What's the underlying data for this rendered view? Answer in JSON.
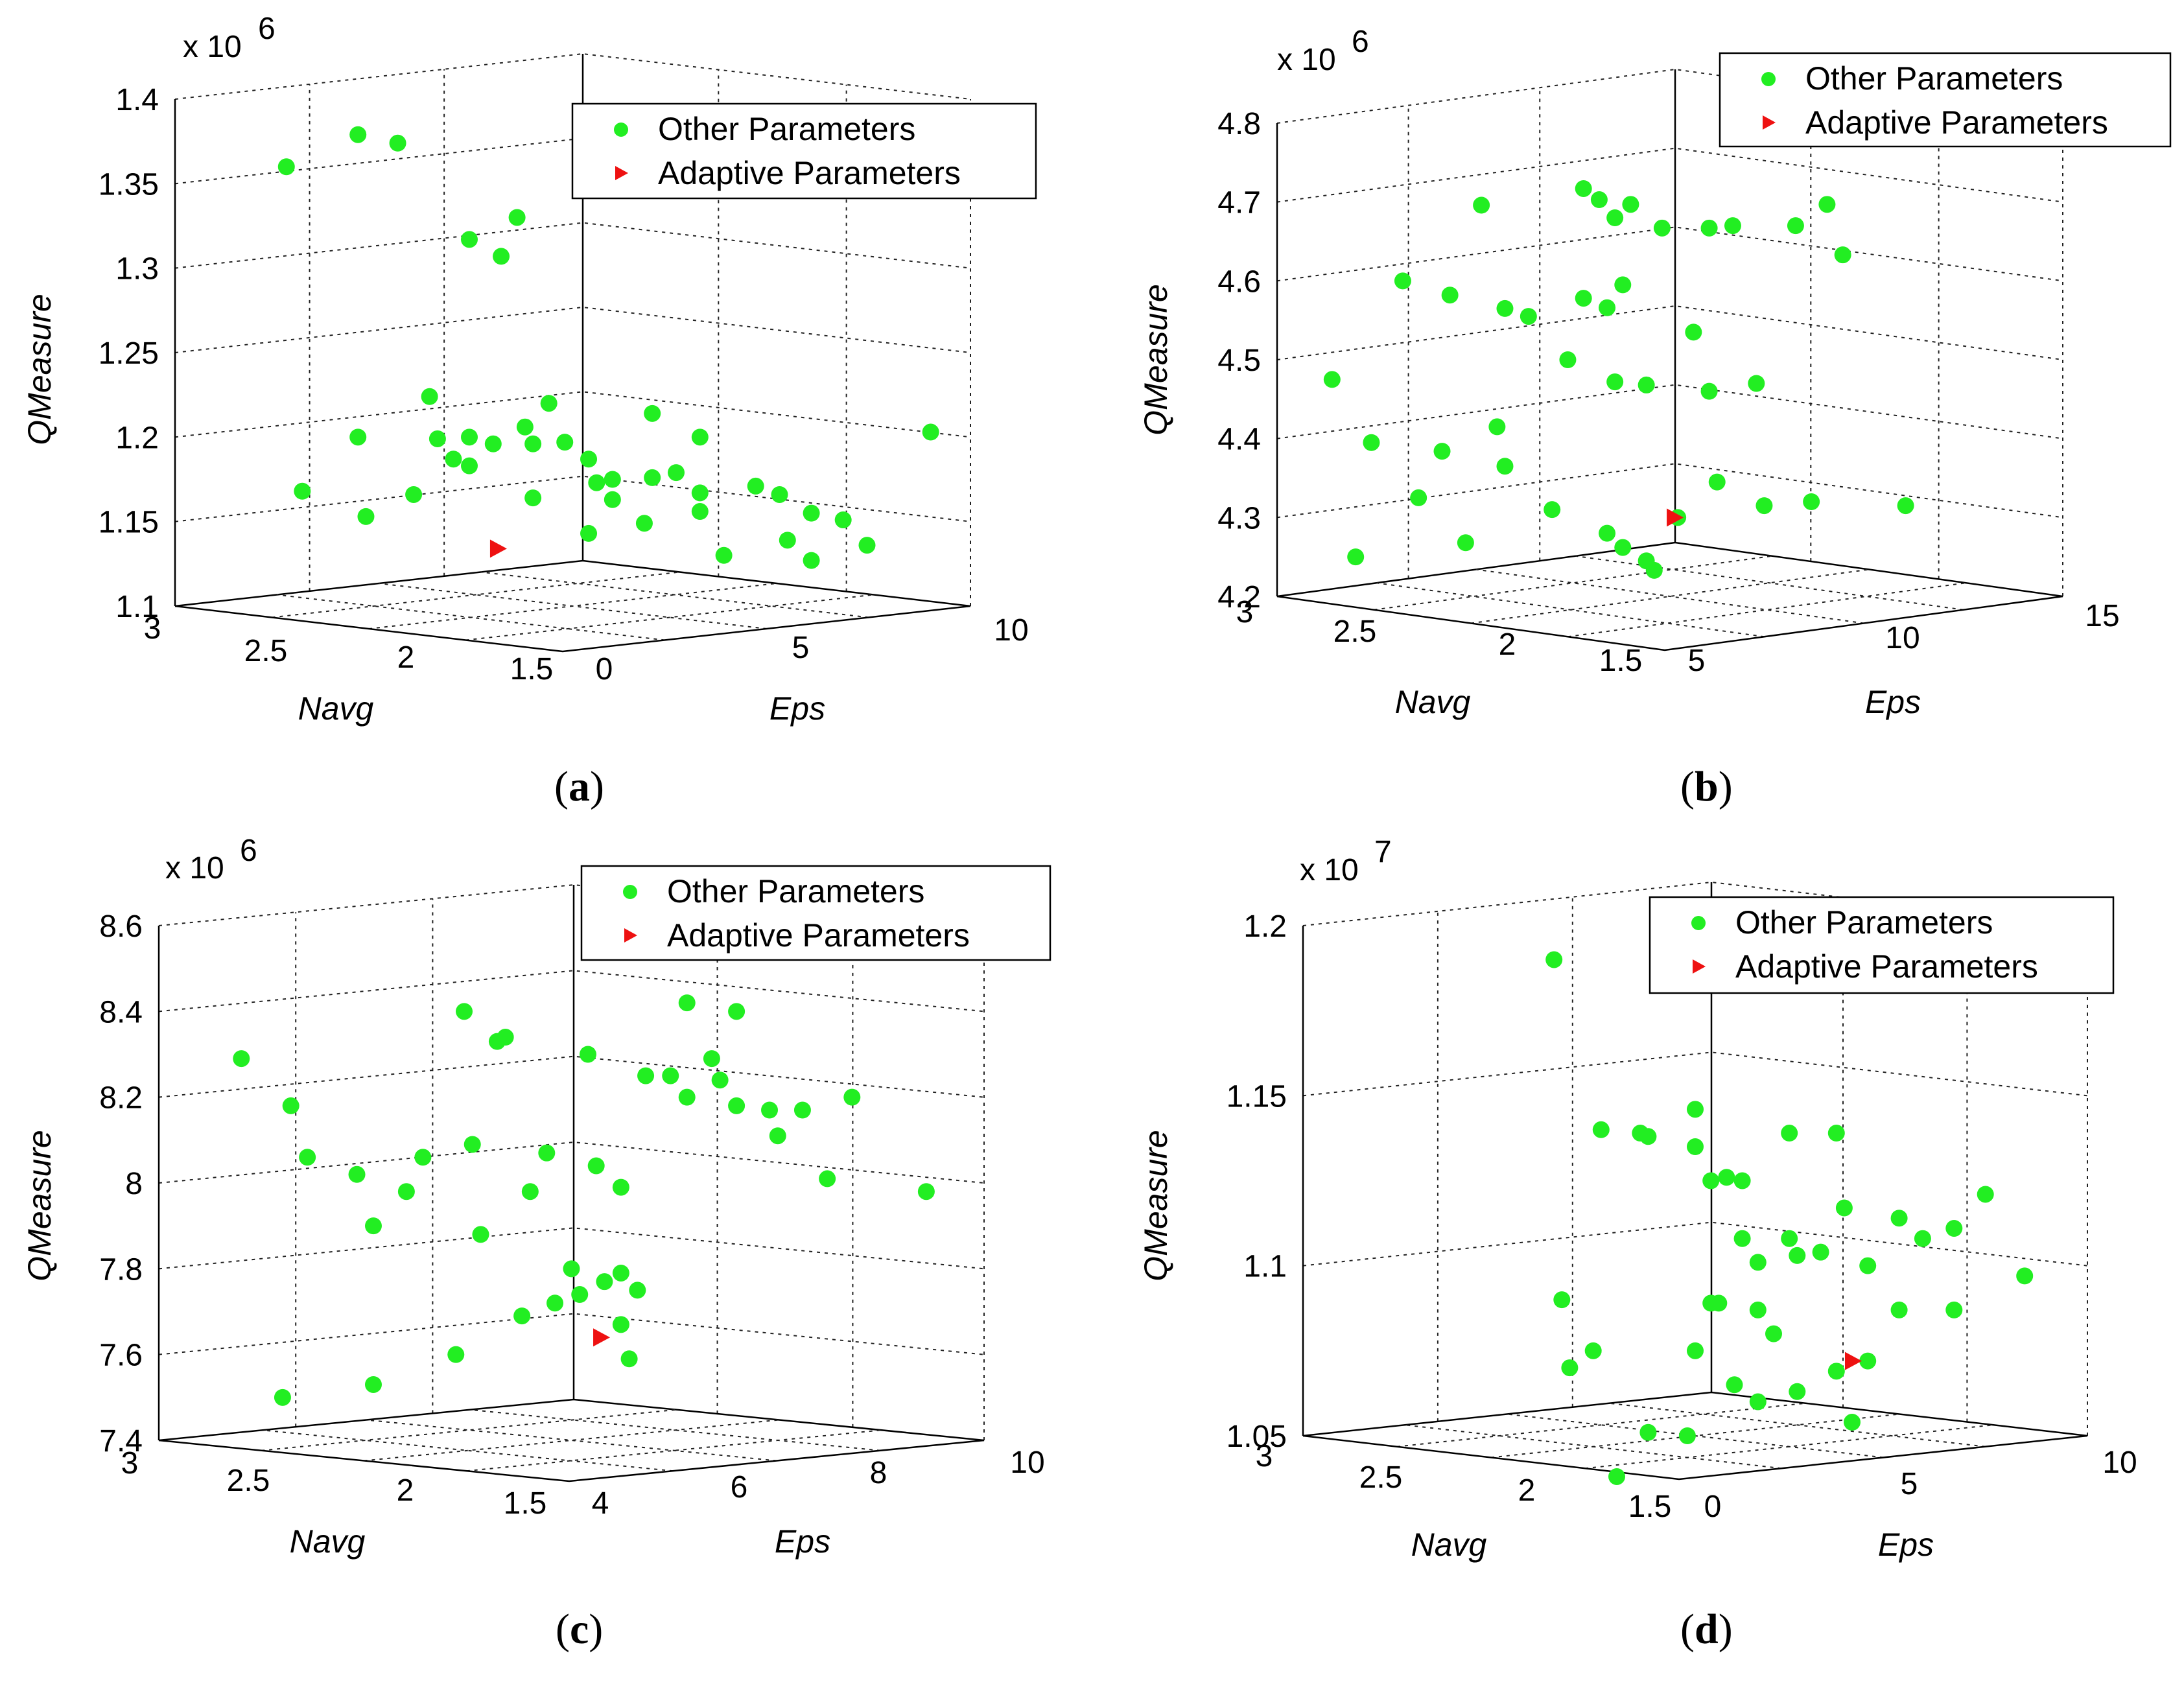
{
  "colors": {
    "other": "#22ee22",
    "adaptive": "#ee1111"
  },
  "chart_data": [
    {
      "type": "scatter3d",
      "panel_label": "a",
      "zlabel": "QMeasure",
      "xlabel": "Navg",
      "ylabel": "Eps",
      "z_exponent_base": "x 10",
      "z_exponent_power": "6",
      "z_ticks": [
        "1.1",
        "1.15",
        "1.2",
        "1.25",
        "1.3",
        "1.35",
        "1.4"
      ],
      "x_ticks": [
        "3",
        "2.5",
        "2",
        "1.5"
      ],
      "y_ticks": [
        "0",
        "5",
        "10"
      ],
      "zlim": [
        1.1,
        1.4
      ],
      "legend": [
        "Other Parameters",
        "Adaptive Parameters"
      ],
      "series": [
        {
          "name": "Other Parameters",
          "marker": "circle",
          "points_uv": [
            [
              0.14,
              1.36
            ],
            [
              0.23,
              1.379
            ],
            [
              0.28,
              1.374
            ],
            [
              0.37,
              1.317
            ],
            [
              0.41,
              1.307
            ],
            [
              0.43,
              1.33
            ],
            [
              0.37,
              1.183
            ],
            [
              0.32,
              1.224
            ],
            [
              0.23,
              1.2
            ],
            [
              0.16,
              1.168
            ],
            [
              0.24,
              1.153
            ],
            [
              0.3,
              1.166
            ],
            [
              0.33,
              1.199
            ],
            [
              0.35,
              1.187
            ],
            [
              0.37,
              1.2
            ],
            [
              0.4,
              1.196
            ],
            [
              0.44,
              1.206
            ],
            [
              0.45,
              1.196
            ],
            [
              0.47,
              1.22
            ],
            [
              0.49,
              1.197
            ],
            [
              0.45,
              1.164
            ],
            [
              0.52,
              1.187
            ],
            [
              0.53,
              1.173
            ],
            [
              0.55,
              1.175
            ],
            [
              0.52,
              1.143
            ],
            [
              0.6,
              1.214
            ],
            [
              0.6,
              1.176
            ],
            [
              0.63,
              1.179
            ],
            [
              0.66,
              1.2
            ],
            [
              0.55,
              1.163
            ],
            [
              0.59,
              1.149
            ],
            [
              0.66,
              1.167
            ],
            [
              0.66,
              1.156
            ],
            [
              0.73,
              1.171
            ],
            [
              0.76,
              1.166
            ],
            [
              0.69,
              1.13
            ],
            [
              0.77,
              1.139
            ],
            [
              0.8,
              1.155
            ],
            [
              0.84,
              1.151
            ],
            [
              0.87,
              1.136
            ],
            [
              0.95,
              1.203
            ],
            [
              0.8,
              1.127
            ]
          ]
        },
        {
          "name": "Adaptive Parameters",
          "marker": "triangle-right",
          "points_uv": [
            [
              0.405,
              1.134
            ]
          ]
        }
      ]
    },
    {
      "type": "scatter3d",
      "panel_label": "b",
      "zlabel": "QMeasure",
      "xlabel": "Navg",
      "ylabel": "Eps",
      "z_exponent_base": "x 10",
      "z_exponent_power": "6",
      "z_ticks": [
        "4.2",
        "4.3",
        "4.4",
        "4.5",
        "4.6",
        "4.7",
        "4.8"
      ],
      "x_ticks": [
        "3",
        "2.5",
        "2",
        "1.5"
      ],
      "y_ticks": [
        "5",
        "10",
        "15"
      ],
      "zlim": [
        4.2,
        4.8
      ],
      "legend": [
        "Other Parameters",
        "Adaptive Parameters"
      ],
      "series": [
        {
          "name": "Other Parameters",
          "marker": "circle",
          "points_uv": [
            [
              0.26,
              4.696
            ],
            [
              0.16,
              4.6
            ],
            [
              0.22,
              4.582
            ],
            [
              0.29,
              4.565
            ],
            [
              0.32,
              4.555
            ],
            [
              0.39,
              4.717
            ],
            [
              0.41,
              4.703
            ],
            [
              0.45,
              4.697
            ],
            [
              0.43,
              4.68
            ],
            [
              0.49,
              4.667
            ],
            [
              0.55,
              4.667
            ],
            [
              0.58,
              4.67
            ],
            [
              0.66,
              4.67
            ],
            [
              0.7,
              4.697
            ],
            [
              0.72,
              4.633
            ],
            [
              0.39,
              4.578
            ],
            [
              0.42,
              4.566
            ],
            [
              0.44,
              4.595
            ],
            [
              0.37,
              4.5
            ],
            [
              0.43,
              4.472
            ],
            [
              0.53,
              4.535
            ],
            [
              0.47,
              4.468
            ],
            [
              0.55,
              4.46
            ],
            [
              0.61,
              4.47
            ],
            [
              0.07,
              4.475
            ],
            [
              0.12,
              4.395
            ],
            [
              0.21,
              4.384
            ],
            [
              0.28,
              4.415
            ],
            [
              0.29,
              4.365
            ],
            [
              0.18,
              4.325
            ],
            [
              0.24,
              4.268
            ],
            [
              0.1,
              4.25
            ],
            [
              0.35,
              4.31
            ],
            [
              0.42,
              4.28
            ],
            [
              0.44,
              4.262
            ],
            [
              0.47,
              4.245
            ],
            [
              0.51,
              4.3
            ],
            [
              0.56,
              4.345
            ],
            [
              0.62,
              4.315
            ],
            [
              0.68,
              4.32
            ],
            [
              0.8,
              4.315
            ],
            [
              0.48,
              4.233
            ]
          ]
        },
        {
          "name": "Adaptive Parameters",
          "marker": "triangle-right",
          "points_uv": [
            [
              0.505,
              4.3
            ]
          ]
        }
      ]
    },
    {
      "type": "scatter3d",
      "panel_label": "c",
      "zlabel": "QMeasure",
      "xlabel": "Navg",
      "ylabel": "Eps",
      "z_exponent_base": "x 10",
      "z_exponent_power": "6",
      "z_ticks": [
        "7.4",
        "7.6",
        "7.8",
        "8",
        "8.2",
        "8.4",
        "8.6"
      ],
      "x_ticks": [
        "3",
        "2.5",
        "2",
        "1.5"
      ],
      "y_ticks": [
        "4",
        "6",
        "8",
        "10"
      ],
      "zlim": [
        7.4,
        8.6
      ],
      "legend": [
        "Other Parameters",
        "Adaptive Parameters"
      ],
      "series": [
        {
          "name": "Other Parameters",
          "marker": "circle",
          "points_uv": [
            [
              0.1,
              8.29
            ],
            [
              0.16,
              8.18
            ],
            [
              0.18,
              8.06
            ],
            [
              0.24,
              8.02
            ],
            [
              0.32,
              8.06
            ],
            [
              0.26,
              7.9
            ],
            [
              0.3,
              7.98
            ],
            [
              0.37,
              8.4
            ],
            [
              0.41,
              8.33
            ],
            [
              0.42,
              8.34
            ],
            [
              0.38,
              8.09
            ],
            [
              0.39,
              7.88
            ],
            [
              0.45,
              7.98
            ],
            [
              0.47,
              8.07
            ],
            [
              0.52,
              8.3
            ],
            [
              0.53,
              8.04
            ],
            [
              0.56,
              7.99
            ],
            [
              0.59,
              8.25
            ],
            [
              0.62,
              8.25
            ],
            [
              0.64,
              8.42
            ],
            [
              0.64,
              8.2
            ],
            [
              0.67,
              8.29
            ],
            [
              0.68,
              8.24
            ],
            [
              0.7,
              8.4
            ],
            [
              0.7,
              8.18
            ],
            [
              0.74,
              8.17
            ],
            [
              0.75,
              8.11
            ],
            [
              0.78,
              8.17
            ],
            [
              0.81,
              8.01
            ],
            [
              0.84,
              8.2
            ],
            [
              0.93,
              7.98
            ],
            [
              0.44,
              7.69
            ],
            [
              0.48,
              7.72
            ],
            [
              0.5,
              7.8
            ],
            [
              0.51,
              7.74
            ],
            [
              0.54,
              7.77
            ],
            [
              0.56,
              7.79
            ],
            [
              0.58,
              7.75
            ],
            [
              0.56,
              7.67
            ],
            [
              0.57,
              7.59
            ],
            [
              0.36,
              7.6
            ],
            [
              0.26,
              7.53
            ],
            [
              0.15,
              7.5
            ]
          ]
        },
        {
          "name": "Adaptive Parameters",
          "marker": "triangle-right",
          "points_uv": [
            [
              0.535,
              7.64
            ]
          ]
        }
      ]
    },
    {
      "type": "scatter3d",
      "panel_label": "d",
      "zlabel": "QMeasure",
      "xlabel": "Navg",
      "ylabel": "Eps",
      "z_exponent_base": "x 10",
      "z_exponent_power": "7",
      "z_ticks": [
        "1.05",
        "1.1",
        "1.15",
        "1.2"
      ],
      "x_ticks": [
        "3",
        "2.5",
        "2",
        "1.5"
      ],
      "y_ticks": [
        "0",
        "5",
        "10"
      ],
      "zlim": [
        1.05,
        1.2
      ],
      "legend": [
        "Other Parameters",
        "Adaptive Parameters"
      ],
      "series": [
        {
          "name": "Other Parameters",
          "marker": "circle",
          "points_uv": [
            [
              0.32,
              1.19
            ],
            [
              0.38,
              1.14
            ],
            [
              0.43,
              1.139
            ],
            [
              0.44,
              1.138
            ],
            [
              0.5,
              1.146
            ],
            [
              0.5,
              1.135
            ],
            [
              0.52,
              1.125
            ],
            [
              0.54,
              1.126
            ],
            [
              0.56,
              1.125
            ],
            [
              0.62,
              1.139
            ],
            [
              0.68,
              1.139
            ],
            [
              0.56,
              1.108
            ],
            [
              0.58,
              1.101
            ],
            [
              0.62,
              1.108
            ],
            [
              0.63,
              1.103
            ],
            [
              0.66,
              1.104
            ],
            [
              0.69,
              1.117
            ],
            [
              0.72,
              1.1
            ],
            [
              0.76,
              1.114
            ],
            [
              0.79,
              1.108
            ],
            [
              0.83,
              1.111
            ],
            [
              0.87,
              1.121
            ],
            [
              0.92,
              1.097
            ],
            [
              0.76,
              1.087
            ],
            [
              0.83,
              1.087
            ],
            [
              0.52,
              1.089
            ],
            [
              0.53,
              1.089
            ],
            [
              0.58,
              1.087
            ],
            [
              0.6,
              1.08
            ],
            [
              0.33,
              1.09
            ],
            [
              0.34,
              1.07
            ],
            [
              0.37,
              1.075
            ],
            [
              0.5,
              1.075
            ],
            [
              0.55,
              1.065
            ],
            [
              0.58,
              1.06
            ],
            [
              0.63,
              1.063
            ],
            [
              0.68,
              1.069
            ],
            [
              0.72,
              1.072
            ],
            [
              0.7,
              1.054
            ],
            [
              0.44,
              1.051
            ],
            [
              0.49,
              1.05
            ],
            [
              0.4,
              1.038
            ]
          ]
        },
        {
          "name": "Adaptive Parameters",
          "marker": "triangle-right",
          "points_uv": [
            [
              0.7,
              1.072
            ]
          ]
        }
      ]
    }
  ]
}
